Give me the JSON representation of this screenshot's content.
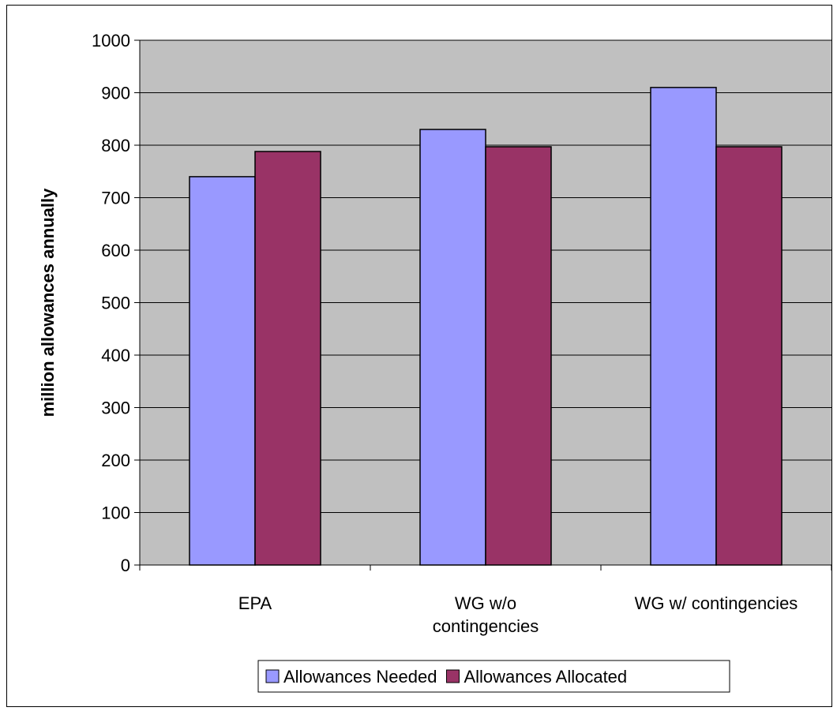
{
  "chart_data": {
    "type": "bar",
    "categories": [
      [
        "EPA"
      ],
      [
        "WG w/o",
        "contingencies"
      ],
      [
        "WG w/ contingencies"
      ]
    ],
    "series": [
      {
        "name": "Allowances Needed",
        "values": [
          740,
          830,
          910
        ],
        "color": "#9999ff"
      },
      {
        "name": "Allowances Allocated",
        "values": [
          788,
          797,
          797
        ],
        "color": "#993366"
      }
    ],
    "title": "",
    "xlabel": "",
    "ylabel": "million allowances annually",
    "ylim": [
      0,
      1000
    ],
    "yticks": [
      0,
      100,
      200,
      300,
      400,
      500,
      600,
      700,
      800,
      900,
      1000
    ],
    "grid": true,
    "plot_background": "#c0c0c0",
    "legend_position": "bottom"
  }
}
